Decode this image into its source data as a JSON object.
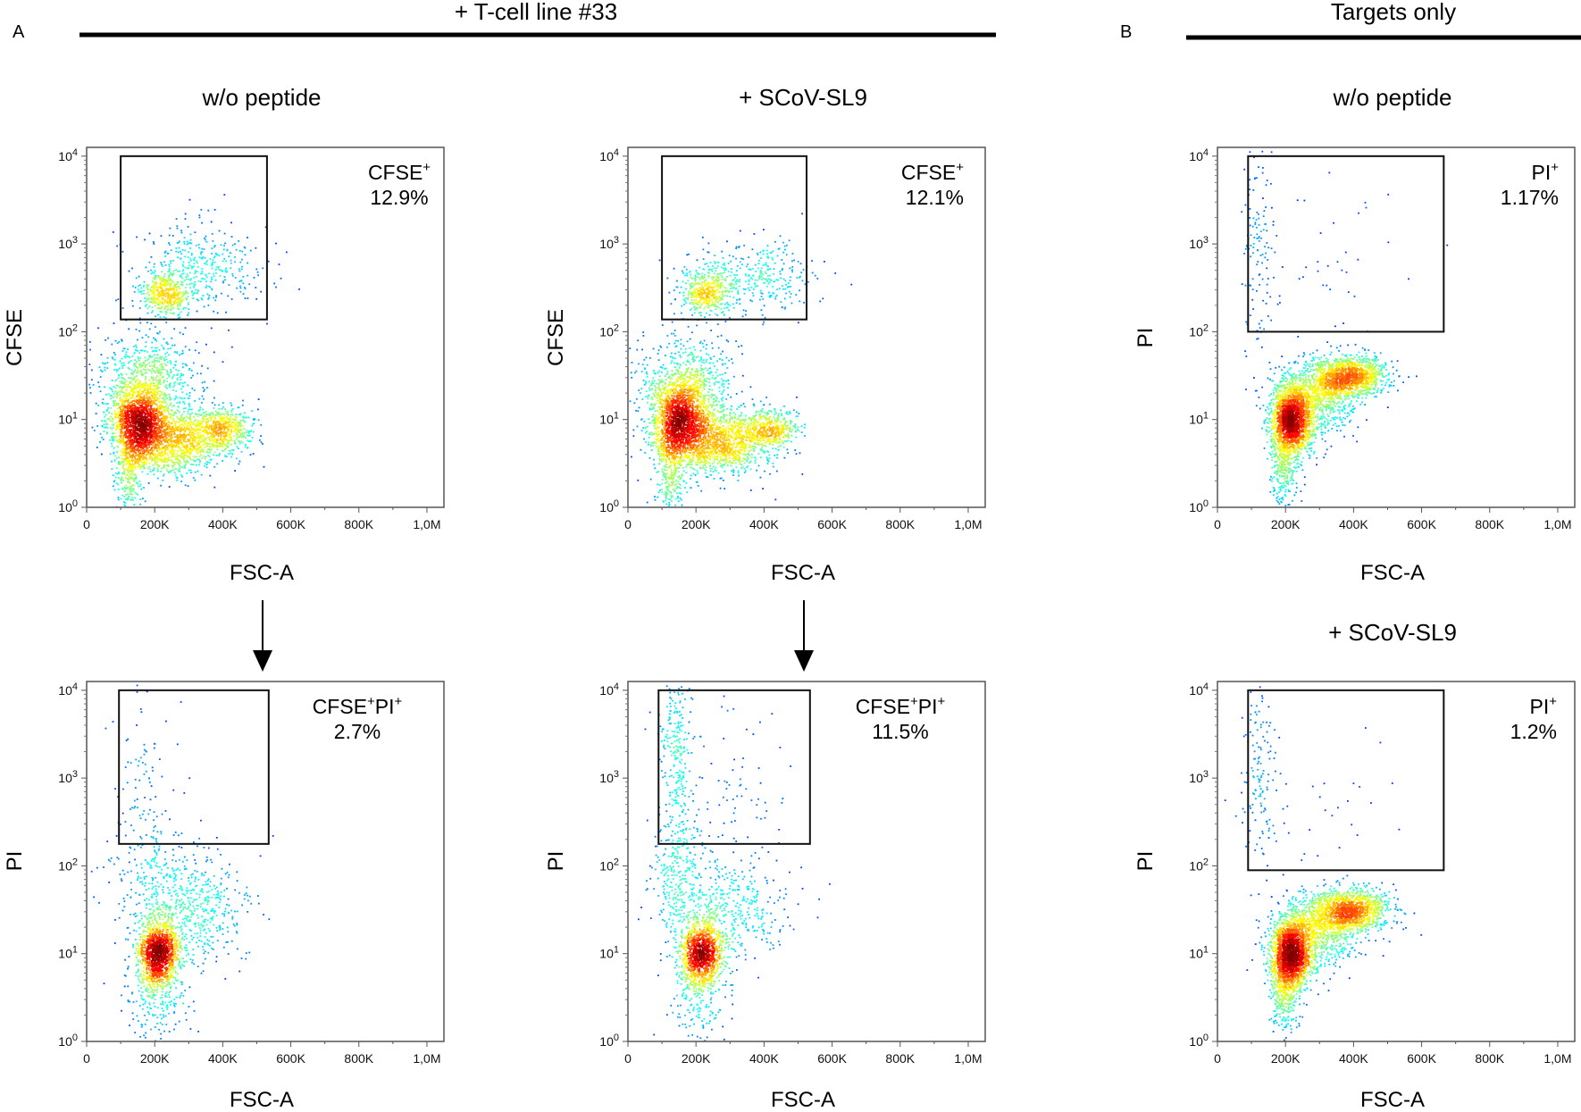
{
  "figure": {
    "panel_a_label": "A",
    "panel_b_label": "B",
    "header_a": "+ T-cell line #33",
    "header_b": "Targets only"
  },
  "chart_data": [
    {
      "id": "a-top-left",
      "type": "scatter",
      "subtype": "flow-cytometry-density",
      "group": "+ T-cell line #33",
      "condition": "w/o peptide",
      "xlabel": "FSC-A",
      "ylabel": "CFSE",
      "xlim": [
        0,
        1050000
      ],
      "x_ticks": [
        "0",
        "200K",
        "400K",
        "600K",
        "800K",
        "1,0M"
      ],
      "ylim_log10": [
        0,
        4.1
      ],
      "y_ticks": [
        "10^0",
        "10^1",
        "10^2",
        "10^3",
        "10^4"
      ],
      "gate": {
        "x_range": [
          100000,
          530000
        ],
        "y_range_log10": [
          2.14,
          4.0
        ],
        "name_parts": [
          "CFSE",
          "+"
        ],
        "percent": "12.9%"
      },
      "clusters": [
        {
          "x": 150000,
          "sx": 40000,
          "y": 0.95,
          "sy": 0.22,
          "n": 1600
        },
        {
          "x": 260000,
          "sx": 70000,
          "y": 0.75,
          "sy": 0.18,
          "n": 1100
        },
        {
          "x": 400000,
          "sx": 45000,
          "y": 0.9,
          "sy": 0.12,
          "n": 500
        },
        {
          "x": 180000,
          "sx": 70000,
          "y": 1.35,
          "sy": 0.3,
          "n": 900
        },
        {
          "x": 120000,
          "sx": 20000,
          "y": 0.4,
          "sy": 0.25,
          "n": 250
        },
        {
          "x": 230000,
          "sx": 40000,
          "y": 2.45,
          "sy": 0.12,
          "n": 450
        },
        {
          "x": 350000,
          "sx": 90000,
          "y": 2.75,
          "sy": 0.25,
          "n": 350
        }
      ]
    },
    {
      "id": "a-top-right",
      "type": "scatter",
      "subtype": "flow-cytometry-density",
      "group": "+ T-cell line #33",
      "condition": "+ SCoV-SL9",
      "xlabel": "FSC-A",
      "ylabel": "CFSE",
      "xlim": [
        0,
        1050000
      ],
      "x_ticks": [
        "0",
        "200K",
        "400K",
        "600K",
        "800K",
        "1,0M"
      ],
      "ylim_log10": [
        0,
        4.1
      ],
      "y_ticks": [
        "10^0",
        "10^1",
        "10^2",
        "10^3",
        "10^4"
      ],
      "gate": {
        "x_range": [
          100000,
          525000
        ],
        "y_range_log10": [
          2.14,
          4.0
        ],
        "name_parts": [
          "CFSE",
          "+"
        ],
        "percent": "12.1%"
      },
      "clusters": [
        {
          "x": 150000,
          "sx": 40000,
          "y": 0.95,
          "sy": 0.22,
          "n": 1600
        },
        {
          "x": 270000,
          "sx": 70000,
          "y": 0.75,
          "sy": 0.18,
          "n": 1100
        },
        {
          "x": 410000,
          "sx": 45000,
          "y": 0.9,
          "sy": 0.12,
          "n": 450
        },
        {
          "x": 170000,
          "sx": 70000,
          "y": 1.35,
          "sy": 0.3,
          "n": 900
        },
        {
          "x": 120000,
          "sx": 20000,
          "y": 0.4,
          "sy": 0.25,
          "n": 250
        },
        {
          "x": 230000,
          "sx": 40000,
          "y": 2.45,
          "sy": 0.13,
          "n": 400
        },
        {
          "x": 360000,
          "sx": 90000,
          "y": 2.65,
          "sy": 0.2,
          "n": 350
        }
      ]
    },
    {
      "id": "b-top",
      "type": "scatter",
      "subtype": "flow-cytometry-density",
      "group": "Targets only",
      "condition": "w/o peptide",
      "xlabel": "FSC-A",
      "ylabel": "PI",
      "xlim": [
        0,
        1050000
      ],
      "x_ticks": [
        "0",
        "200K",
        "400K",
        "600K",
        "800K",
        "1,0M"
      ],
      "ylim_log10": [
        0,
        4.1
      ],
      "y_ticks": [
        "10^0",
        "10^1",
        "10^2",
        "10^3",
        "10^4"
      ],
      "gate": {
        "x_range": [
          90000,
          665000
        ],
        "y_range_log10": [
          2.0,
          4.0
        ],
        "name_parts": [
          "PI",
          "+"
        ],
        "percent": "1.17%"
      },
      "clusters": [
        {
          "x": 215000,
          "sx": 30000,
          "y": 1.0,
          "sy": 0.2,
          "n": 2000
        },
        {
          "x": 380000,
          "sx": 60000,
          "y": 1.5,
          "sy": 0.12,
          "n": 1300
        },
        {
          "x": 290000,
          "sx": 60000,
          "y": 1.25,
          "sy": 0.2,
          "n": 700
        },
        {
          "x": 195000,
          "sx": 20000,
          "y": 0.5,
          "sy": 0.25,
          "n": 300
        },
        {
          "x": 120000,
          "sx": 25000,
          "y": 3.1,
          "sy": 0.6,
          "n": 130
        },
        {
          "x": 350000,
          "sx": 130000,
          "y": 2.7,
          "sy": 0.6,
          "n": 40
        }
      ]
    },
    {
      "id": "a-bottom-left",
      "type": "scatter",
      "subtype": "flow-cytometry-density",
      "group": "+ T-cell line #33",
      "condition": "w/o peptide",
      "xlabel": "FSC-A",
      "ylabel": "PI",
      "xlim": [
        0,
        1050000
      ],
      "x_ticks": [
        "0",
        "200K",
        "400K",
        "600K",
        "800K",
        "1,0M"
      ],
      "ylim_log10": [
        0,
        4.1
      ],
      "y_ticks": [
        "10^0",
        "10^1",
        "10^2",
        "10^3",
        "10^4"
      ],
      "gate": {
        "x_range": [
          95000,
          535000
        ],
        "y_range_log10": [
          2.25,
          4.0
        ],
        "name_parts": [
          "CFSE",
          "+",
          "PI",
          "+"
        ],
        "percent": "2.7%"
      },
      "clusters": [
        {
          "x": 210000,
          "sx": 30000,
          "y": 1.0,
          "sy": 0.2,
          "n": 1400
        },
        {
          "x": 300000,
          "sx": 80000,
          "y": 1.5,
          "sy": 0.3,
          "n": 500
        },
        {
          "x": 200000,
          "sx": 50000,
          "y": 0.5,
          "sy": 0.3,
          "n": 200
        },
        {
          "x": 200000,
          "sx": 70000,
          "y": 1.9,
          "sy": 0.3,
          "n": 200
        },
        {
          "x": 170000,
          "sx": 50000,
          "y": 3.0,
          "sy": 0.5,
          "n": 90
        }
      ]
    },
    {
      "id": "a-bottom-right",
      "type": "scatter",
      "subtype": "flow-cytometry-density",
      "group": "+ T-cell line #33",
      "condition": "+ SCoV-SL9",
      "xlabel": "FSC-A",
      "ylabel": "PI",
      "xlim": [
        0,
        1050000
      ],
      "x_ticks": [
        "0",
        "200K",
        "400K",
        "600K",
        "800K",
        "1,0M"
      ],
      "ylim_log10": [
        0,
        4.1
      ],
      "y_ticks": [
        "10^0",
        "10^1",
        "10^2",
        "10^3",
        "10^4"
      ],
      "gate": {
        "x_range": [
          90000,
          535000
        ],
        "y_range_log10": [
          2.25,
          4.0
        ],
        "name_parts": [
          "CFSE",
          "+",
          "PI",
          "+"
        ],
        "percent": "11.5%"
      },
      "clusters": [
        {
          "x": 215000,
          "sx": 30000,
          "y": 1.0,
          "sy": 0.2,
          "n": 1200
        },
        {
          "x": 300000,
          "sx": 80000,
          "y": 1.5,
          "sy": 0.3,
          "n": 400
        },
        {
          "x": 200000,
          "sx": 50000,
          "y": 0.5,
          "sy": 0.3,
          "n": 150
        },
        {
          "x": 150000,
          "sx": 40000,
          "y": 1.9,
          "sy": 0.4,
          "n": 300
        },
        {
          "x": 140000,
          "sx": 25000,
          "y": 3.3,
          "sy": 0.5,
          "n": 250
        },
        {
          "x": 300000,
          "sx": 100000,
          "y": 2.8,
          "sy": 0.6,
          "n": 80
        }
      ]
    },
    {
      "id": "b-bottom",
      "type": "scatter",
      "subtype": "flow-cytometry-density",
      "group": "Targets only",
      "condition": "+ SCoV-SL9",
      "xlabel": "FSC-A",
      "ylabel": "PI",
      "xlim": [
        0,
        1050000
      ],
      "x_ticks": [
        "0",
        "200K",
        "400K",
        "600K",
        "800K",
        "1,0M"
      ],
      "ylim_log10": [
        0,
        4.1
      ],
      "y_ticks": [
        "10^0",
        "10^1",
        "10^2",
        "10^3",
        "10^4"
      ],
      "gate": {
        "x_range": [
          90000,
          665000
        ],
        "y_range_log10": [
          1.95,
          4.0
        ],
        "name_parts": [
          "PI",
          "+"
        ],
        "percent": "1.2%"
      },
      "clusters": [
        {
          "x": 215000,
          "sx": 30000,
          "y": 1.0,
          "sy": 0.2,
          "n": 2000
        },
        {
          "x": 380000,
          "sx": 60000,
          "y": 1.5,
          "sy": 0.12,
          "n": 1300
        },
        {
          "x": 290000,
          "sx": 60000,
          "y": 1.25,
          "sy": 0.2,
          "n": 700
        },
        {
          "x": 195000,
          "sx": 20000,
          "y": 0.5,
          "sy": 0.25,
          "n": 300
        },
        {
          "x": 120000,
          "sx": 25000,
          "y": 3.1,
          "sy": 0.6,
          "n": 140
        },
        {
          "x": 330000,
          "sx": 120000,
          "y": 2.6,
          "sy": 0.6,
          "n": 40
        }
      ]
    }
  ]
}
